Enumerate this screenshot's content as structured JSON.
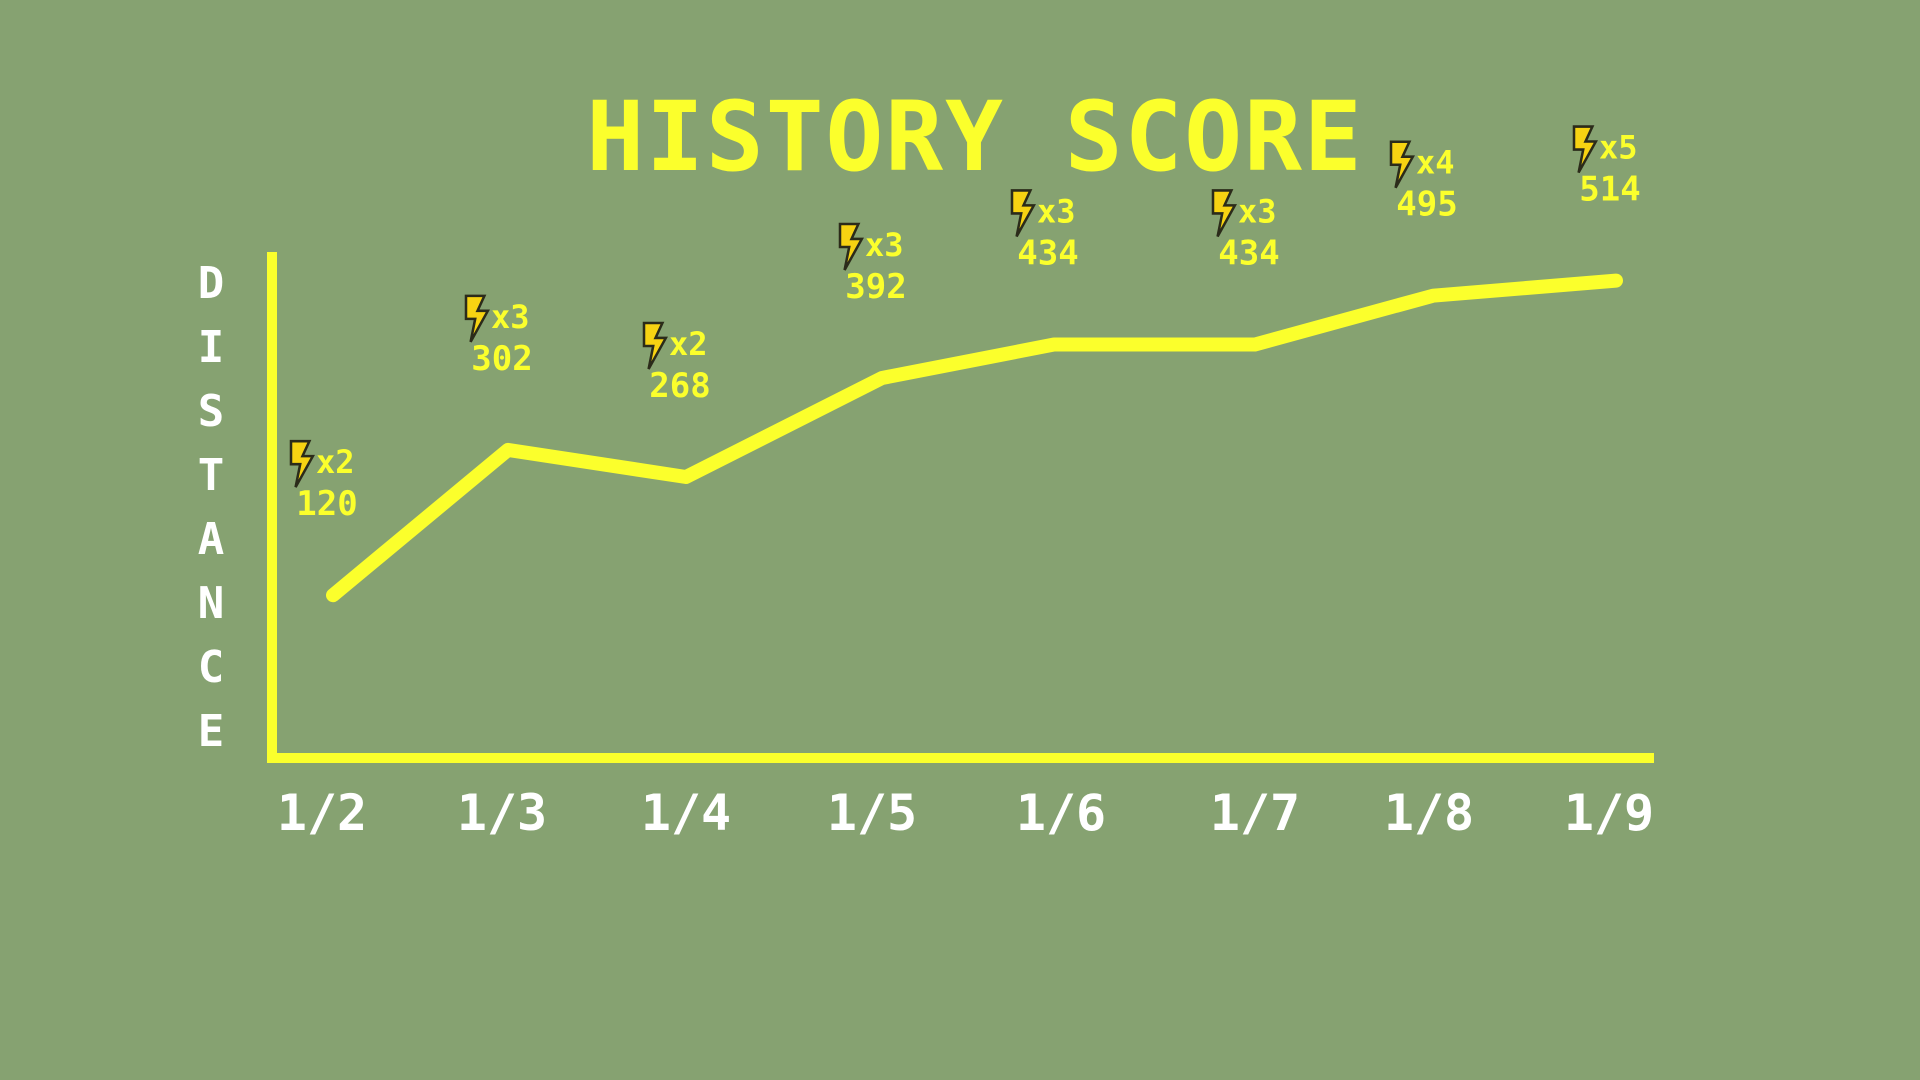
{
  "colors": {
    "background": "#86a271",
    "accent": "#fbff2c",
    "axis_text": "#ffffff",
    "bolt": "#f7d312",
    "bolt_outline": "#2b2b1a"
  },
  "chart_data": {
    "type": "line",
    "title": "HISTORY SCORE",
    "ylabel": "DISTANCE",
    "xlabel": "",
    "categories": [
      "1/2",
      "1/3",
      "1/4",
      "1/5",
      "1/6",
      "1/7",
      "1/8",
      "1/9"
    ],
    "series": [
      {
        "values": [
          120,
          302,
          268,
          392,
          434,
          434,
          495,
          514
        ],
        "multipliers": [
          "x2",
          "x3",
          "x2",
          "x3",
          "x3",
          "x3",
          "x4",
          "x5"
        ]
      }
    ],
    "marker_icon": "lightning-bolt-icon",
    "grid": false,
    "legend": "none"
  }
}
